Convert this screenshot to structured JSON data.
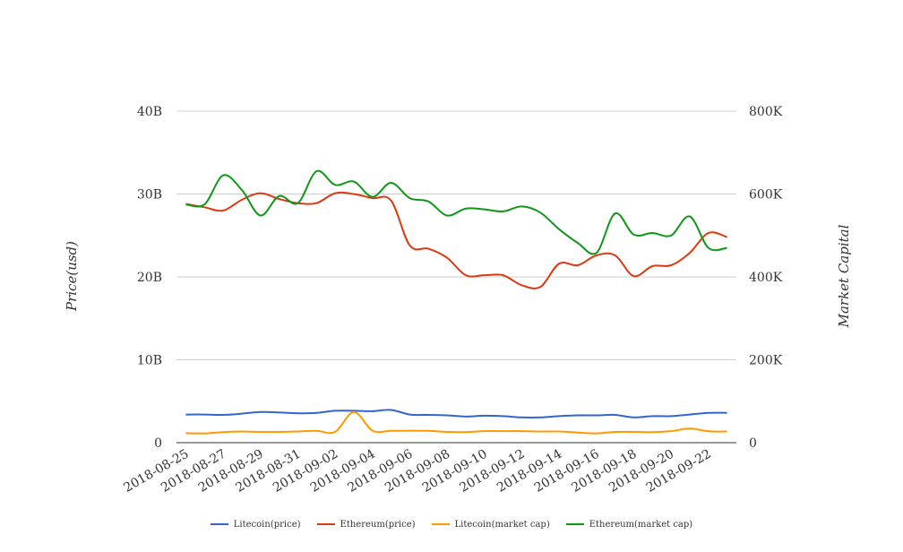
{
  "chart_data": {
    "type": "line",
    "title": "",
    "xlabel": "",
    "ylabel": "Price(usd)",
    "y2label": "Market Capital",
    "x": [
      "2018-08-25",
      "2018-08-26",
      "2018-08-27",
      "2018-08-28",
      "2018-08-29",
      "2018-08-30",
      "2018-08-31",
      "2018-09-01",
      "2018-09-02",
      "2018-09-03",
      "2018-09-04",
      "2018-09-05",
      "2018-09-06",
      "2018-09-07",
      "2018-09-08",
      "2018-09-09",
      "2018-09-10",
      "2018-09-11",
      "2018-09-12",
      "2018-09-13",
      "2018-09-14",
      "2018-09-15",
      "2018-09-16",
      "2018-09-17",
      "2018-09-18",
      "2018-09-19",
      "2018-09-20",
      "2018-09-21",
      "2018-09-22",
      "2018-09-23"
    ],
    "x_tick_labels": [
      "2018-08-25",
      "2018-08-27",
      "2018-08-29",
      "2018-08-31",
      "2018-09-02",
      "2018-09-04",
      "2018-09-06",
      "2018-09-08",
      "2018-09-10",
      "2018-09-12",
      "2018-09-14",
      "2018-09-16",
      "2018-09-18",
      "2018-09-20",
      "2018-09-22"
    ],
    "y_ticks": [
      "0",
      "10B",
      "20B",
      "30B",
      "40B"
    ],
    "y2_ticks": [
      "0",
      "200K",
      "400K",
      "600K",
      "800K"
    ],
    "ylim": [
      0,
      40000000000
    ],
    "y2lim": [
      0,
      800000
    ],
    "grid": true,
    "legend_position": "bottom",
    "series": [
      {
        "name": "Litecoin(price)",
        "axis": "left",
        "color": "#3366cc",
        "values": [
          3400000000.0,
          3400000000.0,
          3350000000.0,
          3500000000.0,
          3700000000.0,
          3650000000.0,
          3550000000.0,
          3600000000.0,
          3850000000.0,
          3850000000.0,
          3800000000.0,
          3950000000.0,
          3400000000.0,
          3350000000.0,
          3300000000.0,
          3150000000.0,
          3250000000.0,
          3200000000.0,
          3050000000.0,
          3050000000.0,
          3200000000.0,
          3300000000.0,
          3300000000.0,
          3350000000.0,
          3050000000.0,
          3200000000.0,
          3200000000.0,
          3400000000.0,
          3600000000.0,
          3600000000.0
        ]
      },
      {
        "name": "Ethereum(price)",
        "axis": "left",
        "color": "#dc3912",
        "values": [
          28800000000.0,
          28400000000.0,
          28000000000.0,
          29300000000.0,
          30100000000.0,
          29400000000.0,
          28900000000.0,
          28900000000.0,
          30100000000.0,
          30000000000.0,
          29500000000.0,
          29200000000.0,
          23800000000.0,
          23400000000.0,
          22300000000.0,
          20200000000.0,
          20200000000.0,
          20200000000.0,
          19000000000.0,
          18800000000.0,
          21600000000.0,
          21400000000.0,
          22600000000.0,
          22600000000.0,
          20100000000.0,
          21300000000.0,
          21400000000.0,
          22900000000.0,
          25300000000.0,
          24800000000.0
        ]
      },
      {
        "name": "Litecoin(market cap)",
        "axis": "right",
        "color": "#ff9900",
        "values": [
          23000,
          22500,
          25500,
          27000,
          26000,
          26000,
          27000,
          28500,
          26000,
          74000,
          29000,
          28500,
          29000,
          28500,
          26000,
          25500,
          28000,
          28000,
          28000,
          27000,
          27000,
          24500,
          22500,
          26000,
          26000,
          25500,
          28000,
          34000,
          27500,
          27000
        ]
      },
      {
        "name": "Ethereum(market cap)",
        "axis": "right",
        "color": "#109618",
        "values": [
          575000,
          575000,
          645000,
          610000,
          548000,
          595000,
          578000,
          655000,
          622000,
          630000,
          593000,
          627000,
          590000,
          582000,
          548000,
          565000,
          563000,
          558000,
          570000,
          555000,
          515000,
          482000,
          458000,
          553000,
          502000,
          506000,
          500000,
          546000,
          470000,
          470000
        ]
      }
    ]
  }
}
